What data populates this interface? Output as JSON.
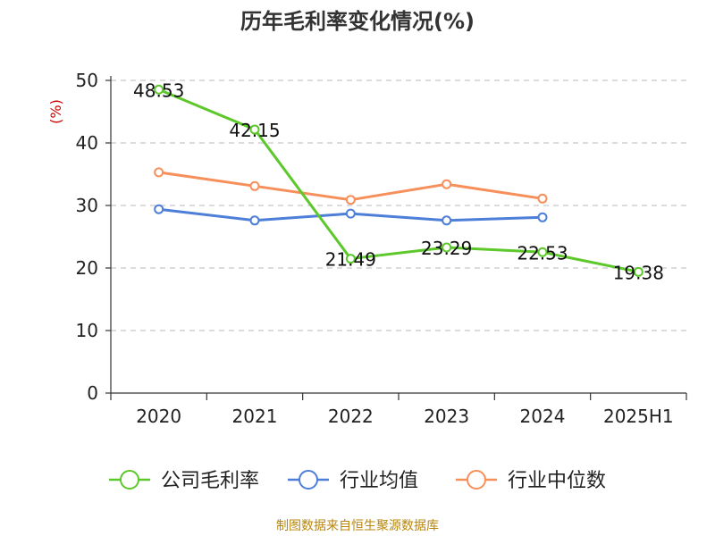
{
  "chart_data": {
    "type": "line",
    "title": "历年毛利率变化情况(%)",
    "ylabel": "(%)",
    "xlabel": "",
    "categories": [
      "2020",
      "2021",
      "2022",
      "2023",
      "2024",
      "2025H1"
    ],
    "ylim": [
      0,
      50
    ],
    "yticks": [
      0,
      10,
      20,
      30,
      40,
      50
    ],
    "grid": true,
    "legend_position": "bottom",
    "series": [
      {
        "name": "公司毛利率",
        "color": "#5cc82a",
        "values": [
          48.53,
          42.15,
          21.49,
          23.29,
          22.53,
          19.38
        ],
        "labels": [
          "48.53",
          "42.15",
          "21.49",
          "23.29",
          "22.53",
          "19.38"
        ]
      },
      {
        "name": "行业均值",
        "color": "#4e7fd8",
        "values": [
          29.4,
          27.6,
          28.7,
          27.6,
          28.1,
          null
        ]
      },
      {
        "name": "行业中位数",
        "color": "#f68f5a",
        "values": [
          35.3,
          33.1,
          30.9,
          33.4,
          31.1,
          null
        ]
      }
    ],
    "unit_color": "#cc0000"
  },
  "source_text": "制图数据来自恒生聚源数据库"
}
